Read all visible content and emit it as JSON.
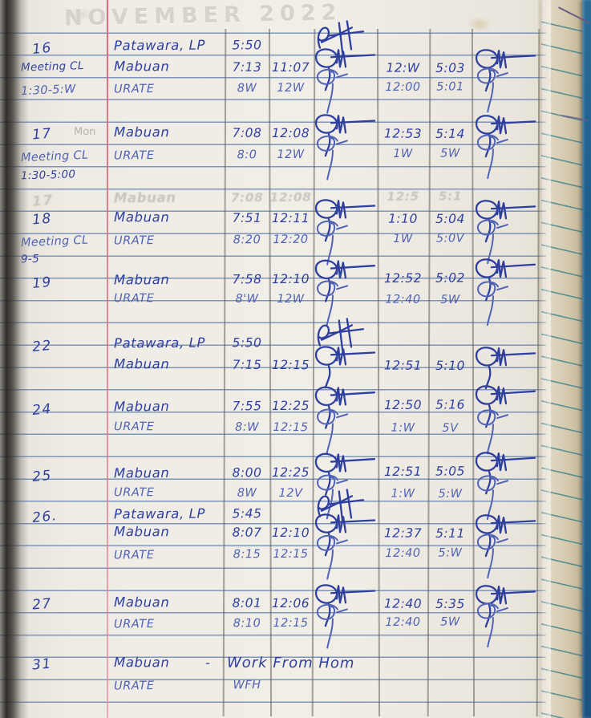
{
  "header": {
    "faint_title": "NOVEMBER 2022"
  },
  "colors": {
    "ink": "#2e3f9f",
    "ink_light": "#5163b5",
    "ruled_line": "#6a86b0",
    "red_margin": "#d06273",
    "paper": "#ece9e2",
    "cover_blue": "#1c5d8d"
  },
  "log": {
    "rows": [
      {
        "date": "16",
        "name": "Patawara, LP",
        "t1": "5:50",
        "sig1": "rh"
      },
      {
        "note": "Meeting CL",
        "name": "Mabuan",
        "t1": "7:13",
        "t2": "11:07",
        "sig1": "m",
        "t3": "12:W",
        "t4": "5:03",
        "sig2": "m"
      },
      {
        "note": "1:30-5:W",
        "name": "URATE",
        "t1": "8W",
        "t2": "12W",
        "sig1": "g",
        "t3": "12:00",
        "t4": "5:01",
        "sig2": "g"
      },
      {
        "date": "17",
        "pencil": "Mon",
        "name": "Mabuan",
        "t1": "7:08",
        "t2": "12:08",
        "sig1": "m",
        "t3": "12:53",
        "t4": "5:14",
        "sig2": "m"
      },
      {
        "note": "Meeting CL",
        "name": "URATE",
        "t1": "8:0",
        "t2": "12W",
        "sig1": "g",
        "t3": "1W",
        "t4": "5W",
        "sig2": "g"
      },
      {
        "note": "1:30-5:00"
      },
      {
        "ghost": true,
        "date": "17",
        "name": "Mabuan",
        "t1": "7:08",
        "t2": "12:08",
        "t3": "12:5",
        "t4": "5:1"
      },
      {
        "date": "18",
        "name": "Mabuan",
        "t1": "7:51",
        "t2": "12:11",
        "sig1": "m",
        "t3": "1:10",
        "t4": "5:04",
        "sig2": "m"
      },
      {
        "note": "Meeting CL",
        "name": "URATE",
        "t1": "8:20",
        "t2": "12:20",
        "sig1": "g",
        "t3": "1W",
        "t4": "5:0V",
        "sig2": "g"
      },
      {
        "note": "9-5"
      },
      {
        "date": "19",
        "name": "Mabuan",
        "t1": "7:58",
        "t2": "12:10",
        "sig1": "m",
        "t3": "12:52",
        "t4": "5:02",
        "sig2": "m"
      },
      {
        "name": "URATE",
        "t1": "8'W",
        "t2": "12W",
        "sig1": "g",
        "t3": "12:40",
        "t4": "5W",
        "sig2": "g"
      },
      {
        "date": "22",
        "name": "Patawara, LP",
        "t1": "5:50",
        "sig1": "rh"
      },
      {
        "name": "Mabuan",
        "t1": "7:15",
        "t2": "12:15",
        "sig1": "m",
        "t3": "12:51",
        "t4": "5:10",
        "sig2": "m"
      },
      {
        "date": "24",
        "name": "Mabuan",
        "t1": "7:55",
        "t2": "12:25",
        "sig1": "m",
        "t3": "12:50",
        "t4": "5:16",
        "sig2": "m"
      },
      {
        "name": "URATE",
        "t1": "8:W",
        "t2": "12:15",
        "sig1": "g",
        "t3": "1:W",
        "t4": "5V",
        "sig2": "g"
      },
      {
        "date": "25",
        "name": "Mabuan",
        "t1": "8:00",
        "t2": "12:25",
        "sig1": "m",
        "t3": "12:51",
        "t4": "5:05",
        "sig2": "m"
      },
      {
        "name": "URATE",
        "t1": "8W",
        "t2": "12V",
        "sig1": "g",
        "t3": "1:W",
        "t4": "5:W",
        "sig2": "g"
      },
      {
        "date": "26.",
        "name": "Patawara, LP",
        "t1": "5:45",
        "sig1": "rh"
      },
      {
        "name": "Mabuan",
        "t1": "8:07",
        "t2": "12:10",
        "sig1": "m",
        "t3": "12:37",
        "t4": "5:11",
        "sig2": "m"
      },
      {
        "name": "URATE",
        "t1": "8:15",
        "t2": "12:15",
        "sig1": "g",
        "t3": "12:40",
        "t4": "5:W",
        "sig2": "g"
      },
      {
        "date": "27",
        "name": "Mabuan",
        "t1": "8:01",
        "t2": "12:06",
        "sig1": "m",
        "t3": "12:40",
        "t4": "5:35",
        "sig2": "m"
      },
      {
        "name": "URATE",
        "t1": "8:10",
        "t2": "12:15",
        "sig1": "g",
        "t3": "12:40",
        "t4": "5W",
        "sig2": "g"
      },
      {
        "date": "31",
        "name": "Mabuan",
        "dash": "-",
        "span": "Work From Hom"
      },
      {
        "name": "URATE",
        "t1": "WFH"
      }
    ]
  }
}
